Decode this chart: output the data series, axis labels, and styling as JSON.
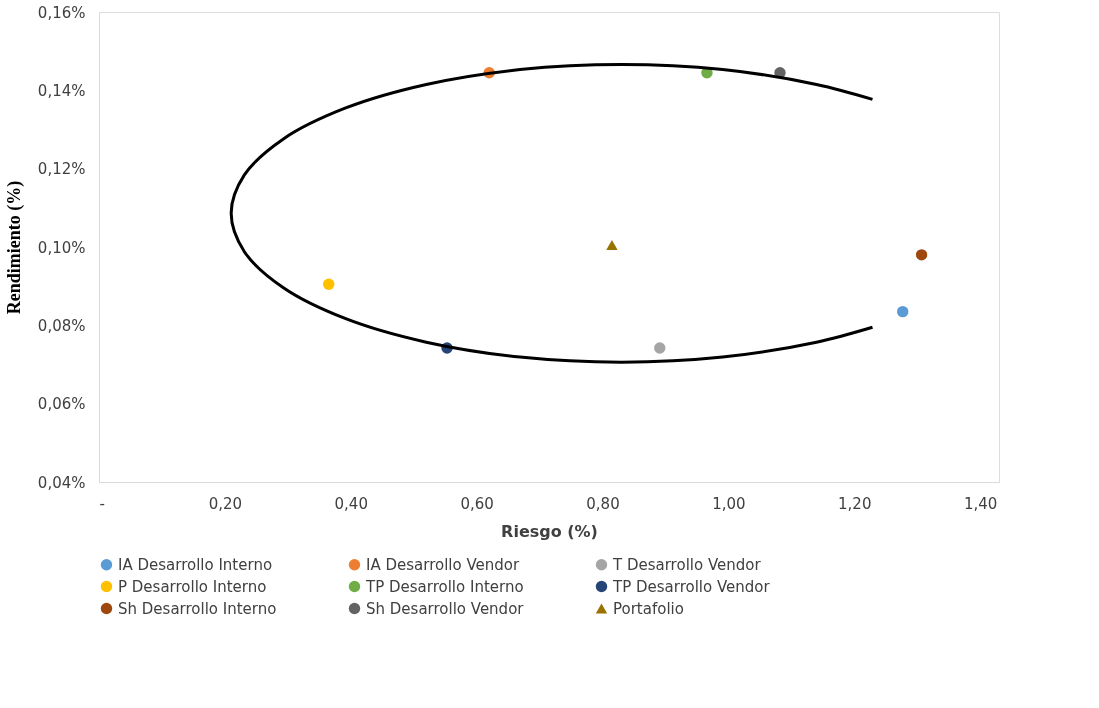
{
  "chart_data": {
    "type": "scatter",
    "xlabel": "Riesgo (%)",
    "ylabel": "Rendimiento (%)",
    "xlim": [
      0,
      1.43
    ],
    "ylim": [
      0.04,
      0.16
    ],
    "xticks": [
      {
        "value": 0,
        "label": "-"
      },
      {
        "value": 0.2,
        "label": "0,20"
      },
      {
        "value": 0.4,
        "label": "0,40"
      },
      {
        "value": 0.6,
        "label": "0,60"
      },
      {
        "value": 0.8,
        "label": "0,80"
      },
      {
        "value": 1.0,
        "label": "1,00"
      },
      {
        "value": 1.2,
        "label": "1,20"
      },
      {
        "value": 1.4,
        "label": "1,40"
      }
    ],
    "yticks": [
      {
        "value": 0.04,
        "label": "0,04%"
      },
      {
        "value": 0.06,
        "label": "0,06%"
      },
      {
        "value": 0.08,
        "label": "0,08%"
      },
      {
        "value": 0.1,
        "label": "0,10%"
      },
      {
        "value": 0.12,
        "label": "0,12%"
      },
      {
        "value": 0.14,
        "label": "0,14%"
      },
      {
        "value": 0.16,
        "label": "0,16%"
      }
    ],
    "grid": false,
    "legend": "bottom",
    "marker": "circle",
    "series": [
      {
        "name": "IA Desarrollo Interno",
        "color": "#5b9bd5",
        "x": [
          1.277
        ],
        "values": [
          0.0835
        ]
      },
      {
        "name": "IA Desarrollo Vendor",
        "color": "#ed7d31",
        "x": [
          0.62
        ],
        "values": [
          0.1445
        ]
      },
      {
        "name": "T Desarrollo Vendor",
        "color": "#a5a5a5",
        "x": [
          0.891
        ],
        "values": [
          0.0742
        ]
      },
      {
        "name": "P Desarrollo Interno",
        "color": "#ffc000",
        "x": [
          0.365
        ],
        "values": [
          0.0905
        ]
      },
      {
        "name": "TP Desarrollo Interno",
        "color": "#70ad47",
        "x": [
          0.966
        ],
        "values": [
          0.1445
        ]
      },
      {
        "name": "TP Desarrollo Vendor",
        "color": "#264478",
        "x": [
          0.553
        ],
        "values": [
          0.0742
        ]
      },
      {
        "name": "Sh Desarrollo Interno",
        "color": "#9e480e",
        "x": [
          1.307
        ],
        "values": [
          0.098
        ]
      },
      {
        "name": "Sh Desarrollo Vendor",
        "color": "#636363",
        "x": [
          1.082
        ],
        "values": [
          0.1445
        ]
      },
      {
        "name": "Portafolio",
        "color": "#997300",
        "marker": "triangle",
        "x": [
          0.815
        ],
        "values": [
          0.1005
        ]
      },
      {
        "type": "line",
        "color": "#000000",
        "marker": "none",
        "line_style": "solid",
        "x": [
          1.229,
          1.14,
          0.991,
          0.83,
          0.669,
          0.52,
          0.392,
          0.293,
          0.231,
          0.21,
          0.231,
          0.293,
          0.392,
          0.52,
          0.669,
          0.83,
          0.991,
          1.14,
          1.229
        ],
        "values": [
          0.1377,
          0.1415,
          0.1453,
          0.1466,
          0.1453,
          0.1415,
          0.1355,
          0.1276,
          0.1184,
          0.1086,
          0.0988,
          0.0896,
          0.0817,
          0.0757,
          0.0719,
          0.0706,
          0.0719,
          0.0757,
          0.0795
        ]
      }
    ]
  }
}
